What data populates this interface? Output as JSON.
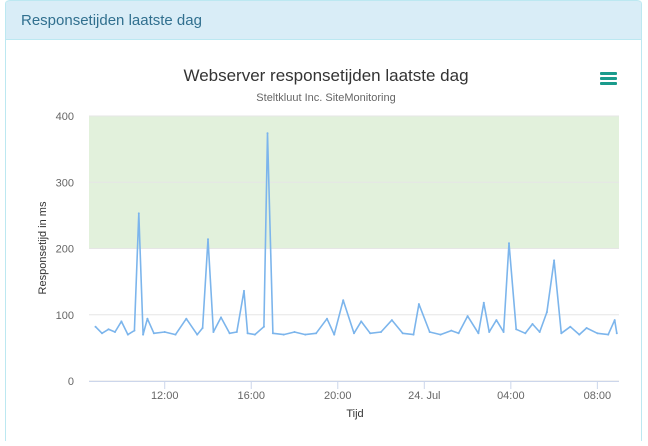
{
  "panel": {
    "title": "Responsetijden laatste dag"
  },
  "icons": {
    "menu": "hamburger-menu-icon"
  },
  "colors": {
    "series": "#7cb5ec",
    "band": "#e2f1dc",
    "grid": "#e6e6e6",
    "menu": "#1a9b8c",
    "panel_heading_bg": "#d9edf7",
    "panel_heading_text": "#31708f"
  },
  "chart_data": {
    "type": "line",
    "title": "Webserver responsetijden laatste dag",
    "subtitle": "Steltkluut Inc. SiteMonitoring",
    "xlabel": "Tijd",
    "ylabel": "Responsetijd in ms",
    "ylim": [
      0,
      400
    ],
    "yticks": [
      "0",
      "100",
      "200",
      "300",
      "400"
    ],
    "xlim": [
      "2023-07-23T08:30",
      "2023-07-24T09:00"
    ],
    "xticks": [
      {
        "t": "2023-07-23T12:00",
        "label": "12:00"
      },
      {
        "t": "2023-07-23T16:00",
        "label": "16:00"
      },
      {
        "t": "2023-07-23T20:00",
        "label": "20:00"
      },
      {
        "t": "2023-07-24T00:00",
        "label": "24. Jul"
      },
      {
        "t": "2023-07-24T04:00",
        "label": "04:00"
      },
      {
        "t": "2023-07-24T08:00",
        "label": "08:00"
      }
    ],
    "plot_band": {
      "from": 200,
      "to": 400
    },
    "grid": true,
    "legend": "none",
    "series": [
      {
        "x": [
          "2023-07-23T08:48",
          "2023-07-23T09:06",
          "2023-07-23T09:24",
          "2023-07-23T09:42",
          "2023-07-23T10:00",
          "2023-07-23T10:18",
          "2023-07-23T10:36",
          "2023-07-23T10:48",
          "2023-07-23T11:00",
          "2023-07-23T11:12",
          "2023-07-23T11:30",
          "2023-07-23T12:00",
          "2023-07-23T12:30",
          "2023-07-23T13:00",
          "2023-07-23T13:30",
          "2023-07-23T13:45",
          "2023-07-23T14:00",
          "2023-07-23T14:15",
          "2023-07-23T14:36",
          "2023-07-23T15:00",
          "2023-07-23T15:20",
          "2023-07-23T15:40",
          "2023-07-23T15:50",
          "2023-07-23T16:10",
          "2023-07-23T16:35",
          "2023-07-23T16:45",
          "2023-07-23T17:00",
          "2023-07-23T17:30",
          "2023-07-23T18:00",
          "2023-07-23T18:30",
          "2023-07-23T19:00",
          "2023-07-23T19:30",
          "2023-07-23T19:50",
          "2023-07-23T20:15",
          "2023-07-23T20:45",
          "2023-07-23T21:05",
          "2023-07-23T21:30",
          "2023-07-23T22:00",
          "2023-07-23T22:30",
          "2023-07-23T23:00",
          "2023-07-23T23:30",
          "2023-07-23T23:45",
          "2023-07-24T00:15",
          "2023-07-24T00:45",
          "2023-07-24T01:15",
          "2023-07-24T01:35",
          "2023-07-24T02:00",
          "2023-07-24T02:30",
          "2023-07-24T02:45",
          "2023-07-24T03:00",
          "2023-07-24T03:20",
          "2023-07-24T03:40",
          "2023-07-24T03:55",
          "2023-07-24T04:15",
          "2023-07-24T04:40",
          "2023-07-24T05:00",
          "2023-07-24T05:20",
          "2023-07-24T05:40",
          "2023-07-24T06:00",
          "2023-07-24T06:20",
          "2023-07-24T06:45",
          "2023-07-24T07:10",
          "2023-07-24T07:30",
          "2023-07-24T08:00",
          "2023-07-24T08:30",
          "2023-07-24T08:48",
          "2023-07-24T08:54"
        ],
        "values": [
          82,
          72,
          78,
          74,
          90,
          70,
          76,
          253,
          70,
          94,
          72,
          74,
          70,
          94,
          70,
          80,
          214,
          74,
          96,
          72,
          74,
          136,
          72,
          70,
          82,
          374,
          72,
          70,
          74,
          70,
          72,
          94,
          70,
          122,
          72,
          90,
          72,
          74,
          92,
          72,
          70,
          116,
          74,
          70,
          76,
          72,
          98,
          72,
          118,
          74,
          92,
          74,
          208,
          78,
          72,
          86,
          74,
          104,
          182,
          72,
          82,
          70,
          80,
          72,
          70,
          92,
          72
        ]
      }
    ]
  }
}
